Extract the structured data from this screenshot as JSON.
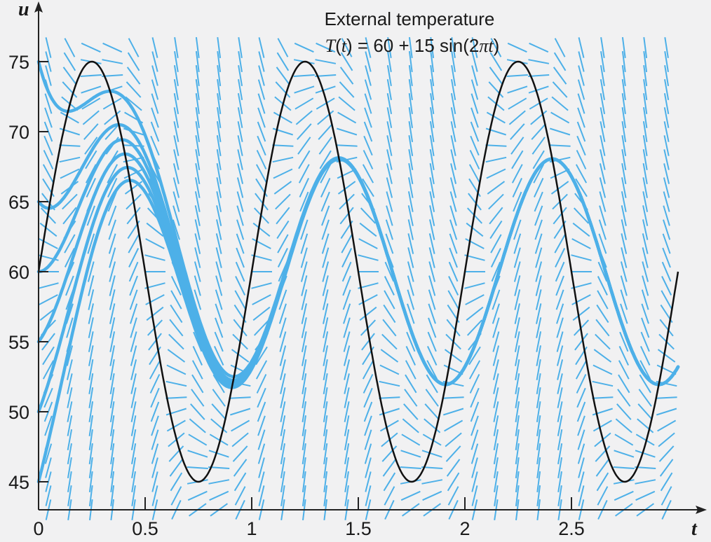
{
  "chart_data": {
    "type": "line",
    "title": "External temperature",
    "subtitle_parts": [
      "",
      "T",
      "(",
      "t",
      ") = 60 + 15 sin(2",
      "π",
      "t",
      ")"
    ],
    "xlabel": "t",
    "ylabel": "u",
    "xlim": [
      0,
      3
    ],
    "ylim": [
      43,
      77
    ],
    "x_ticks": [
      0,
      0.5,
      1,
      1.5,
      2,
      2.5
    ],
    "x_tick_labels": [
      "0",
      "0.5",
      "1",
      "1.5",
      "2",
      "2.5"
    ],
    "y_ticks": [
      45,
      50,
      55,
      60,
      65,
      70,
      75
    ],
    "y_tick_labels": [
      "45",
      "50",
      "55",
      "60",
      "65",
      "70",
      "75"
    ],
    "direction_field": {
      "equation": "du/dt = k (T(t) - u)",
      "k": 4,
      "dx": 0.1,
      "dy": 1
    },
    "external_temperature": {
      "mean": 60,
      "amplitude": 15,
      "frequency": 6.283185,
      "t_max": 3
    },
    "solution_initial_values": [
      45,
      50,
      55,
      60,
      65,
      75
    ],
    "grid": false,
    "colors": {
      "background": "#f1f1f2",
      "field": "#4db0e8",
      "solution": "#4db0e8",
      "external": "#111111",
      "axis": "#222222"
    }
  }
}
